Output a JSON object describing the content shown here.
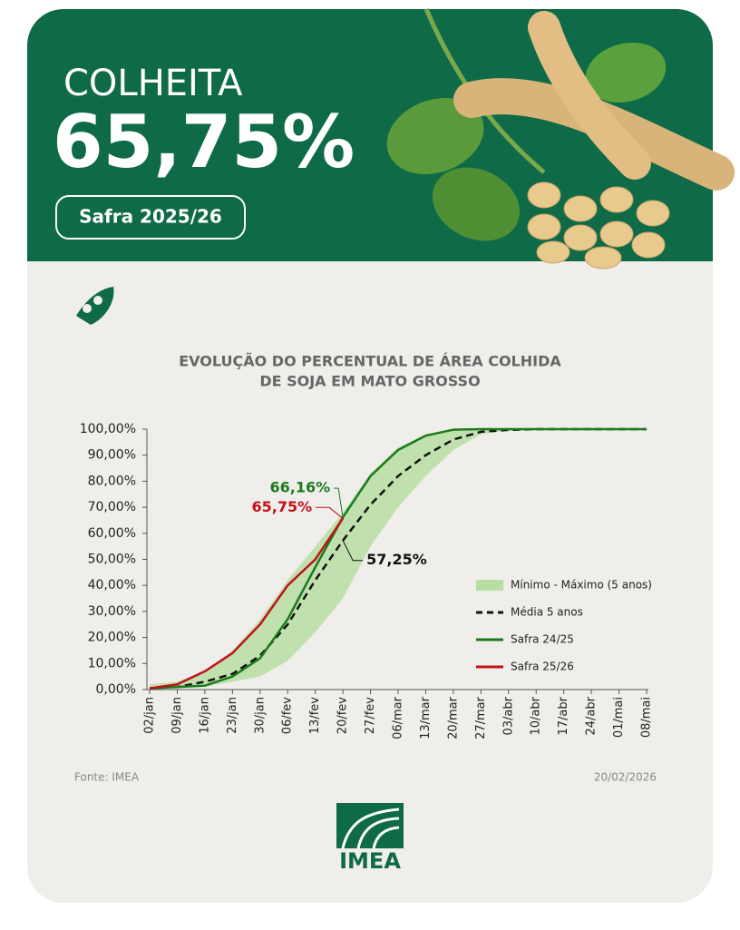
{
  "header": {
    "title": "COLHEITA",
    "value": "65,75%",
    "badge": "Safra 2025/26"
  },
  "chart_data": {
    "type": "line",
    "title_lines": [
      "EVOLUÇÃO DO PERCENTUAL DE ÁREA COLHIDA",
      "DE SOJA EM MATO GROSSO"
    ],
    "categories": [
      "02/jan",
      "09/jan",
      "16/jan",
      "23/jan",
      "30/jan",
      "06/fev",
      "13/fev",
      "20/fev",
      "27/fev",
      "06/mar",
      "13/mar",
      "20/mar",
      "27/mar",
      "03/abr",
      "10/abr",
      "17/abr",
      "24/abr",
      "01/mai",
      "08/mai"
    ],
    "band": {
      "name": "Mínimo - Máximo (5 anos)",
      "color": "#b7dea3",
      "lower": [
        0.5,
        0.5,
        1,
        3,
        5,
        11,
        22,
        35,
        55,
        70,
        82,
        92,
        98,
        99.5,
        100,
        100,
        100,
        100,
        100
      ],
      "upper": [
        2,
        3,
        7,
        15,
        27,
        42,
        55,
        68,
        83,
        93,
        98,
        100,
        100,
        100,
        100,
        100,
        100,
        100,
        100
      ]
    },
    "series": [
      {
        "name": "Média 5 anos",
        "color": "#111111",
        "dashed": true,
        "values": [
          0.5,
          1,
          3,
          6,
          13,
          25,
          42,
          57.25,
          71,
          82,
          90,
          96,
          99,
          99.7,
          100,
          100,
          100,
          100,
          100
        ],
        "value_labels": [
          null,
          null,
          null,
          null,
          null,
          null,
          null,
          "57,25%",
          null,
          null,
          null,
          null,
          null,
          null,
          null,
          null,
          null,
          null,
          null
        ]
      },
      {
        "name": "Safra 24/25",
        "color": "#1c7a1c",
        "values": [
          0.5,
          1,
          1.5,
          5,
          12,
          27,
          47,
          66.16,
          82,
          92,
          97.5,
          99.8,
          100,
          100,
          100,
          100,
          100,
          100,
          100
        ],
        "value_labels": [
          null,
          null,
          null,
          null,
          null,
          null,
          null,
          "66,16%",
          null,
          null,
          null,
          null,
          null,
          null,
          null,
          null,
          null,
          null,
          null
        ]
      },
      {
        "name": "Safra 25/26",
        "color": "#c0121a",
        "values": [
          0.5,
          2,
          7,
          14,
          25,
          40,
          50,
          65.75,
          null,
          null,
          null,
          null,
          null,
          null,
          null,
          null,
          null,
          null,
          null
        ],
        "value_labels": [
          null,
          null,
          null,
          null,
          null,
          null,
          null,
          "65,75%",
          null,
          null,
          null,
          null,
          null,
          null,
          null,
          null,
          null,
          null,
          null
        ]
      }
    ],
    "ylim": [
      0,
      100
    ],
    "yticks": [
      {
        "value": 0,
        "label": "0,00%"
      },
      {
        "value": 10,
        "label": "10,00%"
      },
      {
        "value": 20,
        "label": "20,00%"
      },
      {
        "value": 30,
        "label": "30,00%"
      },
      {
        "value": 40,
        "label": "40,00%"
      },
      {
        "value": 50,
        "label": "50,00%"
      },
      {
        "value": 60,
        "label": "60,00%"
      },
      {
        "value": 70,
        "label": "70,00%"
      },
      {
        "value": 80,
        "label": "80,00%"
      },
      {
        "value": 90,
        "label": "90,00%"
      },
      {
        "value": 100,
        "label": "100,00%"
      }
    ]
  },
  "footer": {
    "source": "Fonte: IMEA",
    "date": "20/02/2026"
  },
  "logo": "IMEA"
}
